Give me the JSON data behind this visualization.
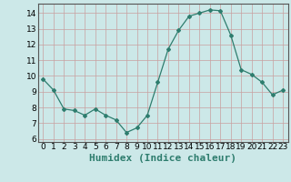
{
  "x": [
    0,
    1,
    2,
    3,
    4,
    5,
    6,
    7,
    8,
    9,
    10,
    11,
    12,
    13,
    14,
    15,
    16,
    17,
    18,
    19,
    20,
    21,
    22,
    23
  ],
  "y": [
    9.8,
    9.1,
    7.9,
    7.8,
    7.5,
    7.9,
    7.5,
    7.2,
    6.4,
    6.7,
    7.5,
    9.6,
    11.7,
    12.9,
    13.8,
    14.0,
    14.2,
    14.15,
    12.6,
    10.4,
    10.1,
    9.6,
    8.8,
    9.1
  ],
  "xlabel": "Humidex (Indice chaleur)",
  "ylim": [
    5.8,
    14.6
  ],
  "xlim": [
    -0.5,
    23.5
  ],
  "bg_color": "#cce8e8",
  "line_color": "#2e7d6e",
  "grid_color": "#c0d8d8",
  "tick_label_fontsize": 6.5,
  "xlabel_fontsize": 8,
  "yticks": [
    6,
    7,
    8,
    9,
    10,
    11,
    12,
    13,
    14
  ],
  "xtick_labels": [
    "0",
    "1",
    "2",
    "3",
    "4",
    "5",
    "6",
    "7",
    "8",
    "9",
    "10",
    "11",
    "12",
    "13",
    "14",
    "15",
    "16",
    "17",
    "18",
    "19",
    "20",
    "21",
    "22",
    "23"
  ]
}
